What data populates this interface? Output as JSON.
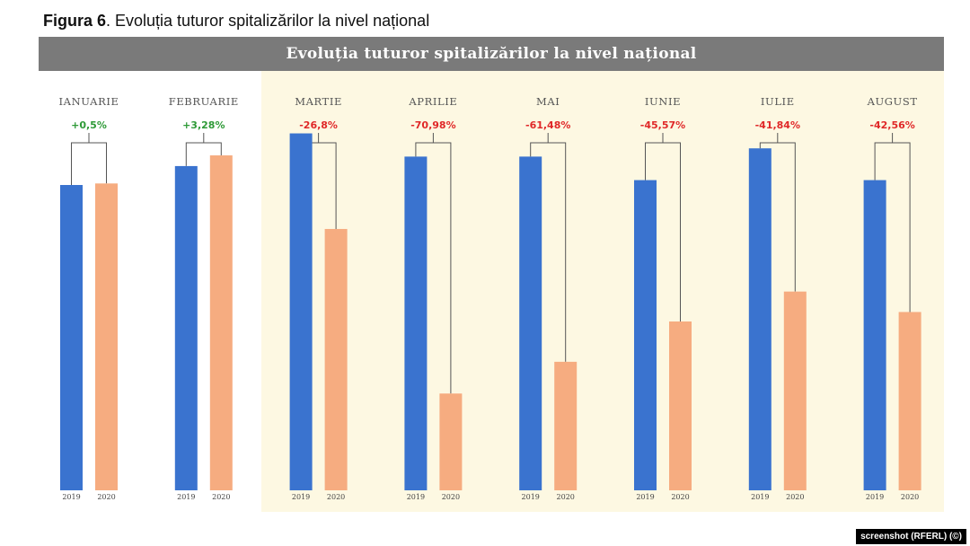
{
  "figure": {
    "caption_bold": "Figura 6",
    "caption_rest": ". Evoluția tuturor spitalizărilor la nivel național"
  },
  "credit": "screenshot (RFERL) (©)",
  "colors": {
    "bar_2019": "#3a73cf",
    "bar_2020": "#f6ac80",
    "positive": "#2e9a37",
    "negative": "#e02828",
    "title_band": "#7a7a7a",
    "highlight": "#fdf8e2"
  },
  "chart_data": {
    "type": "bar",
    "title": "Evoluția tuturor spitalizărilor la nivel național",
    "categories": [
      "IANUARIE",
      "FEBRUARIE",
      "MARTIE",
      "APRILIE",
      "MAI",
      "IUNIE",
      "IULIE",
      "AUGUST"
    ],
    "changes": [
      "+0,5%",
      "+3,28%",
      "-26,8%",
      "-70,98%",
      "-61,48%",
      "-45,57%",
      "-41,84%",
      "-42,56%"
    ],
    "series": [
      {
        "name": "2019",
        "values": [
          100,
          106.2,
          116.9,
          109.3,
          109.3,
          101.6,
          112.0,
          101.6
        ]
      },
      {
        "name": "2020",
        "values": [
          100.5,
          109.7,
          85.6,
          31.7,
          42.1,
          55.3,
          65.1,
          58.4
        ]
      }
    ],
    "ylim": [
      0,
      140
    ],
    "grid": false,
    "legend": "none",
    "highlighted_categories": [
      "MARTIE",
      "APRILIE",
      "MAI",
      "IUNIE",
      "IULIE",
      "AUGUST"
    ]
  }
}
